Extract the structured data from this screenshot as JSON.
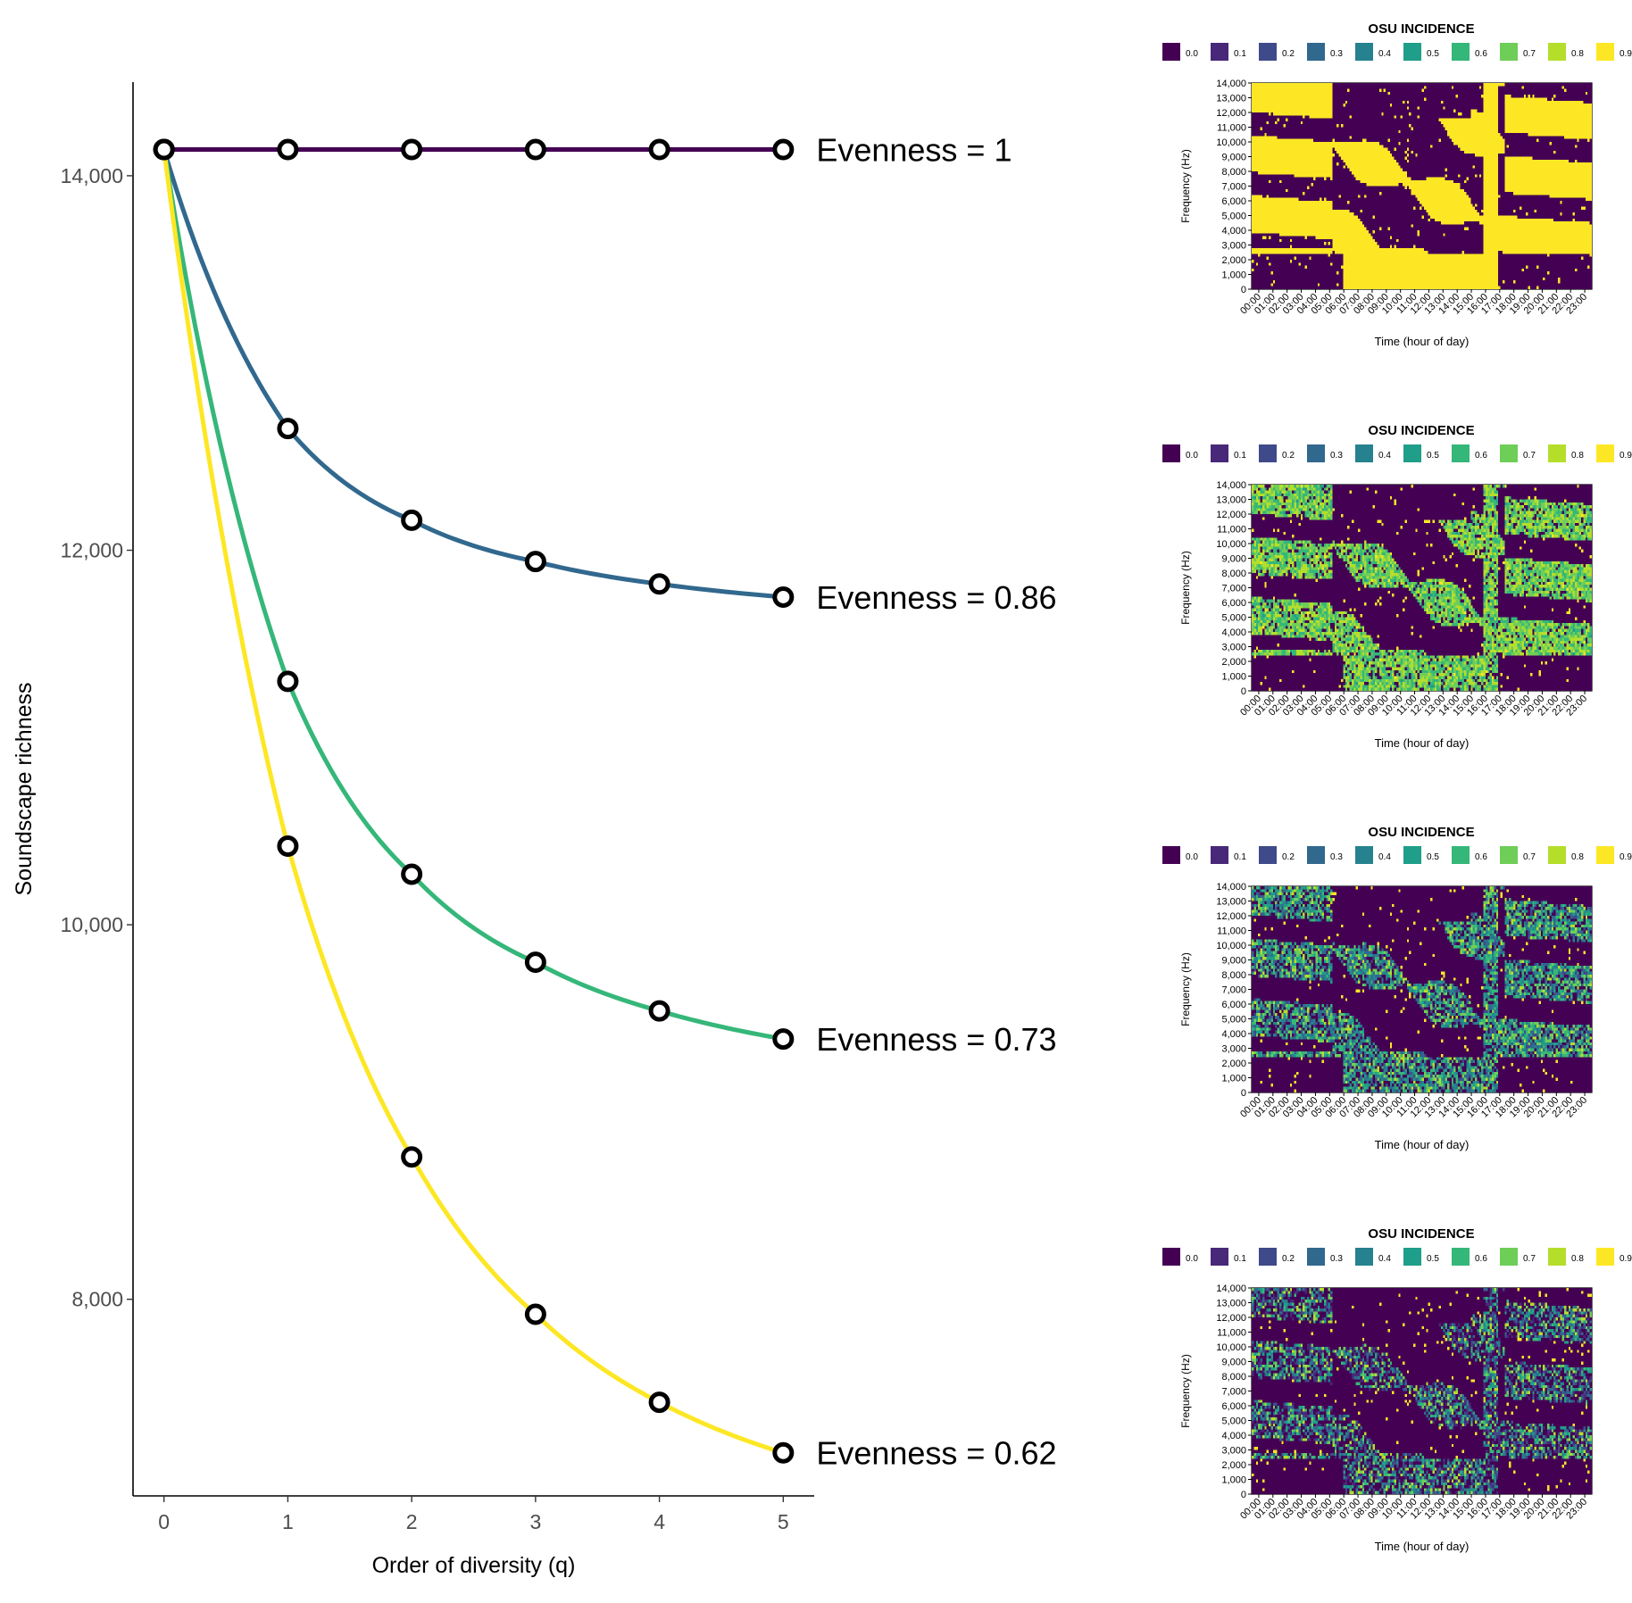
{
  "colors": {
    "viridis": [
      "#440154",
      "#482878",
      "#3e4a89",
      "#31688e",
      "#26828e",
      "#1f9e89",
      "#35b779",
      "#6ece58",
      "#b5de2b",
      "#fde725"
    ],
    "axis": "#000000",
    "tick_text": "#4d4d4d"
  },
  "chart_data": [
    {
      "type": "line",
      "xlabel": "Order of diversity (q)",
      "ylabel": "Soundscape richness",
      "xlim": [
        -0.25,
        5.25
      ],
      "ylim": [
        6950,
        14500
      ],
      "x_ticks": [
        0,
        1,
        2,
        3,
        4,
        5
      ],
      "y_ticks": [
        8000,
        10000,
        12000,
        14000
      ],
      "y_tick_labels": [
        "8,000",
        "10,000",
        "12,000",
        "14,000"
      ],
      "grid": false,
      "x": [
        0,
        1,
        2,
        3,
        4,
        5
      ],
      "series": [
        {
          "name": "Evenness = 1",
          "color": "#440154",
          "values": [
            14140,
            14140,
            14140,
            14140,
            14140,
            14140
          ]
        },
        {
          "name": "Evenness = 0.86",
          "color": "#31688e",
          "values": [
            14140,
            12650,
            12160,
            11940,
            11820,
            11750
          ]
        },
        {
          "name": "Evenness = 0.73",
          "color": "#35b779",
          "values": [
            14140,
            11300,
            10270,
            9800,
            9540,
            9390
          ]
        },
        {
          "name": "Evenness = 0.62",
          "color": "#fde725",
          "values": [
            14140,
            10420,
            8760,
            7920,
            7450,
            7180
          ]
        }
      ]
    },
    {
      "type": "heatmap",
      "title": "OSU INCIDENCE",
      "evenness": 1.0,
      "xlabel": "Time (hour of day)",
      "ylabel": "Frequency (Hz)",
      "legend": {
        "placement": "top",
        "labels": [
          "0.0",
          "0.1",
          "0.2",
          "0.3",
          "0.4",
          "0.5",
          "0.6",
          "0.7",
          "0.8",
          "0.9"
        ]
      },
      "x_ticks": [
        "00:00",
        "01:00",
        "02:00",
        "03:00",
        "04:00",
        "05:00",
        "06:00",
        "07:00",
        "08:00",
        "09:00",
        "10:00",
        "11:00",
        "12:00",
        "13:00",
        "14:00",
        "15:00",
        "16:00",
        "17:00",
        "18:00",
        "19:00",
        "20:00",
        "21:00",
        "22:00",
        "23:00"
      ],
      "y_ticks": [
        "0",
        "1,000",
        "2,000",
        "3,000",
        "4,000",
        "5,000",
        "6,000",
        "7,000",
        "8,000",
        "9,000",
        "10,000",
        "11,000",
        "12,000",
        "13,000",
        "14,000"
      ]
    },
    {
      "type": "heatmap",
      "title": "OSU INCIDENCE",
      "evenness": 0.86,
      "xlabel": "Time (hour of day)",
      "ylabel": "Frequency (Hz)",
      "legend": {
        "placement": "top",
        "labels": [
          "0.0",
          "0.1",
          "0.2",
          "0.3",
          "0.4",
          "0.5",
          "0.6",
          "0.7",
          "0.8",
          "0.9"
        ]
      },
      "x_ticks": [
        "00:00",
        "01:00",
        "02:00",
        "03:00",
        "04:00",
        "05:00",
        "06:00",
        "07:00",
        "08:00",
        "09:00",
        "10:00",
        "11:00",
        "12:00",
        "13:00",
        "14:00",
        "15:00",
        "16:00",
        "17:00",
        "18:00",
        "19:00",
        "20:00",
        "21:00",
        "22:00",
        "23:00"
      ],
      "y_ticks": [
        "0",
        "1,000",
        "2,000",
        "3,000",
        "4,000",
        "5,000",
        "6,000",
        "7,000",
        "8,000",
        "9,000",
        "10,000",
        "11,000",
        "12,000",
        "13,000",
        "14,000"
      ]
    },
    {
      "type": "heatmap",
      "title": "OSU INCIDENCE",
      "evenness": 0.73,
      "xlabel": "Time (hour of day)",
      "ylabel": "Frequency (Hz)",
      "legend": {
        "placement": "top",
        "labels": [
          "0.0",
          "0.1",
          "0.2",
          "0.3",
          "0.4",
          "0.5",
          "0.6",
          "0.7",
          "0.8",
          "0.9"
        ]
      },
      "x_ticks": [
        "00:00",
        "01:00",
        "02:00",
        "03:00",
        "04:00",
        "05:00",
        "06:00",
        "07:00",
        "08:00",
        "09:00",
        "10:00",
        "11:00",
        "12:00",
        "13:00",
        "14:00",
        "15:00",
        "16:00",
        "17:00",
        "18:00",
        "19:00",
        "20:00",
        "21:00",
        "22:00",
        "23:00"
      ],
      "y_ticks": [
        "0",
        "1,000",
        "2,000",
        "3,000",
        "4,000",
        "5,000",
        "6,000",
        "7,000",
        "8,000",
        "9,000",
        "10,000",
        "11,000",
        "12,000",
        "13,000",
        "14,000"
      ]
    },
    {
      "type": "heatmap",
      "title": "OSU INCIDENCE",
      "evenness": 0.62,
      "xlabel": "Time (hour of day)",
      "ylabel": "Frequency (Hz)",
      "legend": {
        "placement": "top",
        "labels": [
          "0.0",
          "0.1",
          "0.2",
          "0.3",
          "0.4",
          "0.5",
          "0.6",
          "0.7",
          "0.8",
          "0.9"
        ]
      },
      "x_ticks": [
        "00:00",
        "01:00",
        "02:00",
        "03:00",
        "04:00",
        "05:00",
        "06:00",
        "07:00",
        "08:00",
        "09:00",
        "10:00",
        "11:00",
        "12:00",
        "13:00",
        "14:00",
        "15:00",
        "16:00",
        "17:00",
        "18:00",
        "19:00",
        "20:00",
        "21:00",
        "22:00",
        "23:00"
      ],
      "y_ticks": [
        "0",
        "1,000",
        "2,000",
        "3,000",
        "4,000",
        "5,000",
        "6,000",
        "7,000",
        "8,000",
        "9,000",
        "10,000",
        "11,000",
        "12,000",
        "13,000",
        "14,000"
      ]
    }
  ]
}
